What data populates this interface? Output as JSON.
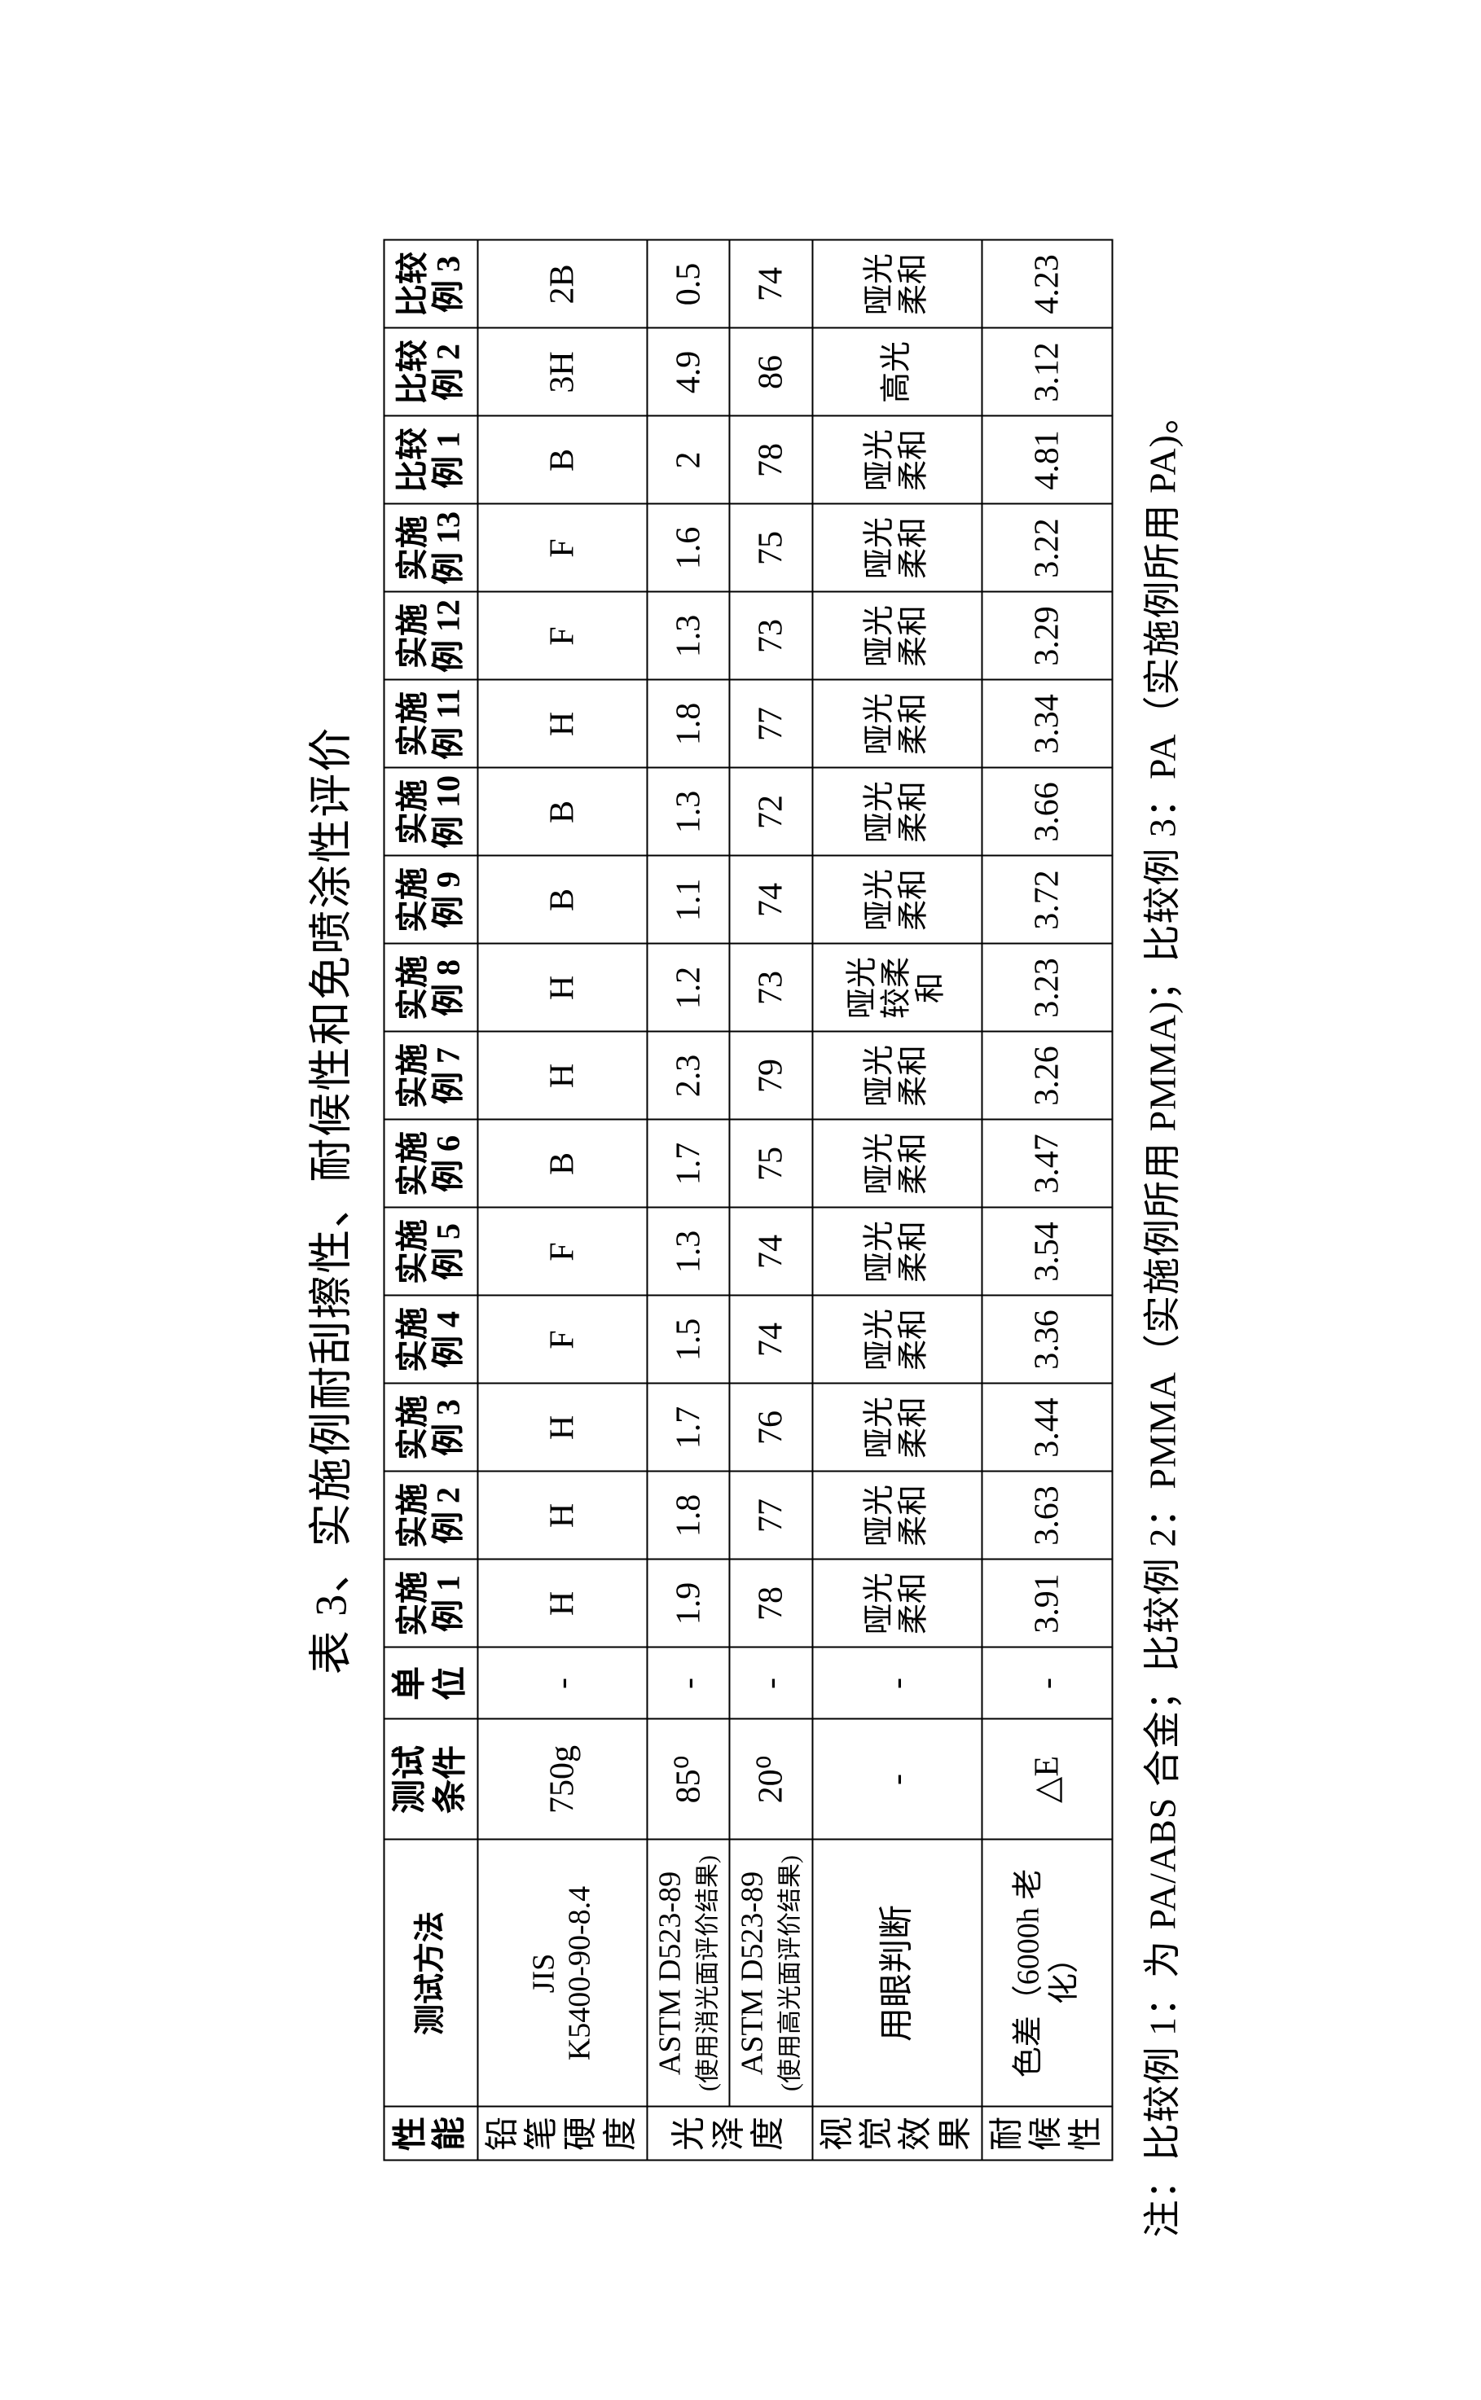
{
  "title": "表 3、实施例耐刮擦性、耐候性和免喷涂性评价",
  "header": {
    "perf": "性能",
    "method": "测试方法",
    "cond": "测试条件",
    "unit": "单位",
    "cols": [
      "实施例 1",
      "实施例 2",
      "实施例 3",
      "实施例 4",
      "实施例 5",
      "实施例 6",
      "实施例 7",
      "实施例 8",
      "实施例 9",
      "实施例 10",
      "实施例 11",
      "实施例 12",
      "实施例 13",
      "比较例 1",
      "比较例 2",
      "比较例 3"
    ]
  },
  "rows": {
    "pencil": {
      "perf": "铅笔硬度",
      "method": "JIS K5400-90-8.4",
      "cond": "750g",
      "unit": "-",
      "vals": [
        "H",
        "H",
        "H",
        "F",
        "F",
        "B",
        "H",
        "H",
        "B",
        "B",
        "H",
        "F",
        "F",
        "B",
        "3H",
        "2B"
      ]
    },
    "gloss": {
      "perf": "光泽度",
      "m1_a": "ASTM D523-89",
      "m1_b": "(使用消光面评价结果)",
      "c1": "85⁰",
      "m2_a": "ASTM D523-89",
      "m2_b": "(使用高光面评价结果)",
      "c2": "20⁰",
      "unit": "-",
      "vals85": [
        "1.9",
        "1.8",
        "1.7",
        "1.5",
        "1.3",
        "1.7",
        "2.3",
        "1.2",
        "1.1",
        "1.3",
        "1.8",
        "1.3",
        "1.6",
        "2",
        "4.9",
        "0.5"
      ],
      "vals20": [
        "78",
        "77",
        "76",
        "74",
        "74",
        "75",
        "79",
        "73",
        "74",
        "72",
        "77",
        "73",
        "75",
        "78",
        "86",
        "74"
      ]
    },
    "visual": {
      "perf": "视觉效果",
      "method": "用眼判断",
      "cond": "-",
      "unit": "-",
      "vals": [
        "哑光柔和",
        "哑光柔和",
        "哑光柔和",
        "哑光柔和",
        "哑光柔和",
        "哑光柔和",
        "哑光柔和",
        "哑光较柔和",
        "哑光柔和",
        "哑光柔和",
        "哑光柔和",
        "哑光柔和",
        "哑光柔和",
        "哑光柔和",
        "高光",
        "哑光柔和"
      ]
    },
    "weather": {
      "perf": "耐候性",
      "method": "色差（6000h 老化）",
      "cond": "△E",
      "unit": "-",
      "vals": [
        "3.91",
        "3.63",
        "3.44",
        "3.36",
        "3.54",
        "3.47",
        "3.26",
        "3.23",
        "3.72",
        "3.66",
        "3.34",
        "3.29",
        "3.22",
        "4.81",
        "3.12",
        "4.23"
      ]
    }
  },
  "footnote": "注：比较例 1：为 PA/ABS 合金；比较例 2：PMMA（实施例所用 PMMA)；比较例 3：PA（实施例所用 PA)。"
}
